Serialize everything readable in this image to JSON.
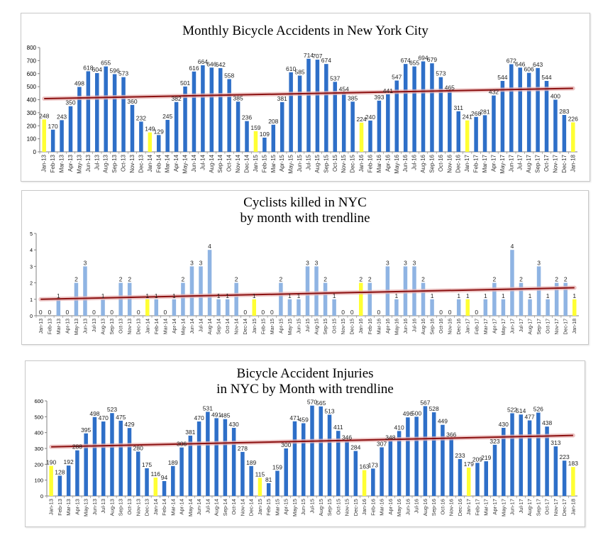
{
  "chart_data": [
    {
      "type": "bar",
      "title": "Monthly Bicycle Accidents in New York City",
      "title_lines": [
        "Monthly Bicycle Accidents in New York City"
      ],
      "categories": [
        "Jan-13",
        "Feb-13",
        "Mar-13",
        "Apr-13",
        "May-13",
        "Jun-13",
        "Jul-13",
        "Aug-13",
        "Sep-13",
        "Oct-13",
        "Nov-13",
        "Dec-13",
        "Jan-14",
        "Feb-14",
        "Mar-14",
        "Apr-14",
        "May-14",
        "Jun-14",
        "Jul-14",
        "Aug-14",
        "Sep-14",
        "Oct-14",
        "Nov-14",
        "Dec-14",
        "Jan-15",
        "Feb-15",
        "Mar-15",
        "Apr-15",
        "May-15",
        "Jun-15",
        "Jul-15",
        "Aug-15",
        "Sep-15",
        "Oct-15",
        "Nov-15",
        "Dec-15",
        "Jan-16",
        "Feb-16",
        "Mar-16",
        "Apr-16",
        "May-16",
        "Jun-16",
        "Jul-16",
        "Aug-16",
        "Sep-16",
        "Oct-16",
        "Nov-16",
        "Dec-16",
        "Jan-17",
        "Feb-17",
        "Mar-17",
        "Apr-17",
        "May-17",
        "Jun-17",
        "Jul-17",
        "Aug-17",
        "Sep-17",
        "Oct-17",
        "Nov-17",
        "Dec-17",
        "Jan-18"
      ],
      "values": [
        248,
        170,
        243,
        350,
        498,
        618,
        604,
        655,
        596,
        573,
        360,
        232,
        149,
        129,
        245,
        382,
        501,
        616,
        664,
        646,
        642,
        558,
        385,
        236,
        159,
        109,
        208,
        381,
        610,
        585,
        714,
        707,
        674,
        537,
        454,
        385,
        224,
        240,
        393,
        441,
        547,
        674,
        655,
        694,
        679,
        573,
        465,
        311,
        241,
        268,
        281,
        432,
        544,
        672,
        646,
        606,
        643,
        544,
        400,
        283,
        226
      ],
      "data_labels": [
        "248",
        "170",
        "243",
        "350",
        "498",
        "618",
        "604",
        "655",
        "596",
        "573",
        "360",
        "232",
        "149",
        "129",
        "245",
        "382",
        "501",
        "616",
        "664",
        "646",
        "642",
        "558",
        "385",
        "236",
        "159",
        "109",
        "208",
        "381",
        "610",
        "585",
        "714",
        "707",
        "674",
        "537",
        "454",
        "385",
        "224",
        "240",
        "393",
        "441",
        "547",
        "674",
        "655",
        "694",
        "679",
        "573",
        "465",
        "311",
        "241",
        "268",
        "281",
        "432",
        "544",
        "672",
        "646",
        "606",
        "643",
        "544",
        "400",
        "283",
        "226"
      ],
      "ylim": [
        0,
        800
      ],
      "yticks": [
        "0",
        "100",
        "200",
        "300",
        "400",
        "500",
        "600",
        "700",
        "800"
      ],
      "trendline": {
        "start": 408,
        "end": 487
      },
      "colors": {
        "bar": "#2e6fc8",
        "bar_highlight": "#ffff33",
        "trend": "#8b1010",
        "trend_glow": "#e8b4b4"
      }
    },
    {
      "type": "bar",
      "title": "Cyclists killed in NYC by month with trendline",
      "title_lines": [
        "Cyclists killed in NYC",
        "by month with trendline"
      ],
      "categories": [
        "Jan-13",
        "Feb-13",
        "Mar-13",
        "Apr-13",
        "May-13",
        "Jun-13",
        "Jul-13",
        "Aug-13",
        "Sep-13",
        "Oct-13",
        "Nov-13",
        "Dec-13",
        "Jan-14",
        "Feb-14",
        "Mar-14",
        "Apr-14",
        "May-14",
        "Jun-14",
        "Jul-14",
        "Aug-14",
        "Sep-14",
        "Oct-14",
        "Nov-14",
        "Dec-14",
        "Jan-15",
        "Feb-15",
        "Mar-15",
        "Apr-15",
        "May-15",
        "Jun-15",
        "Jul-15",
        "Aug-15",
        "Sep-15",
        "Oct-15",
        "Nov-15",
        "Dec-15",
        "Jan-16",
        "Feb-16",
        "Mar-16",
        "Apr-16",
        "May-16",
        "Jun-16",
        "Jul-16",
        "Aug-16",
        "Sep-16",
        "Oct-16",
        "Nov-16",
        "Dec-16",
        "Jan-17",
        "Feb-17",
        "Mar-17",
        "Apr-17",
        "May-17",
        "Jun-17",
        "Jul-17",
        "Aug-17",
        "Sep-17",
        "Oct-17",
        "Nov-17",
        "Dec-17",
        "Jan-18"
      ],
      "values": [
        0,
        0,
        1,
        0,
        2,
        3,
        0,
        1,
        0,
        2,
        2,
        0,
        1,
        1,
        0,
        1,
        2,
        3,
        3,
        4,
        1,
        1,
        2,
        0,
        1,
        0,
        0,
        2,
        1,
        1,
        3,
        3,
        2,
        1,
        0,
        0,
        2,
        2,
        0,
        3,
        1,
        3,
        3,
        2,
        1,
        0,
        0,
        1,
        1,
        0,
        1,
        2,
        1,
        4,
        2,
        1,
        3,
        1,
        2,
        2,
        1
      ],
      "data_labels": [
        "0",
        "0",
        "1",
        "0",
        "2",
        "3",
        "0",
        "1",
        "0",
        "2",
        "2",
        "0",
        "1",
        "1",
        "0",
        "1",
        "2",
        "3",
        "3",
        "4",
        "1",
        "1",
        "2",
        "0",
        "1",
        "0",
        "0",
        "2",
        "1",
        "1",
        "3",
        "3",
        "2",
        "1",
        "0",
        "0",
        "2",
        "2",
        "0",
        "3",
        "1",
        "3",
        "3",
        "2",
        "1",
        "0",
        "0",
        "1",
        "1",
        "0",
        "1",
        "2",
        "1",
        "4",
        "2",
        "1",
        "3",
        "1",
        "2",
        "2",
        "1"
      ],
      "ylim": [
        0,
        5
      ],
      "yticks": [
        "0",
        "1",
        "2",
        "3",
        "4",
        "5"
      ],
      "trendline": {
        "start": 1.0,
        "end": 1.7
      },
      "colors": {
        "bar": "#8fb4e3",
        "bar_highlight": "#ffff33",
        "trend": "#8b1010",
        "trend_glow": "#e8b4b4"
      }
    },
    {
      "type": "bar",
      "title": "Bicycle Accident Injuries in NYC by Month with trendline",
      "title_lines": [
        "Bicycle Accident Injuries",
        "in NYC by Month with trendline"
      ],
      "categories": [
        "Jan-13",
        "Feb-13",
        "Mar-13",
        "Apr-13",
        "May-13",
        "Jun-13",
        "Jul-13",
        "Aug-13",
        "Sep-13",
        "Oct-13",
        "Nov-13",
        "Dec-13",
        "Jan-14",
        "Feb-14",
        "Mar-14",
        "Apr-14",
        "May-14",
        "Jun-14",
        "Jul-14",
        "Aug-14",
        "Sep-14",
        "Oct-14",
        "Nov-14",
        "Dec-14",
        "Jan-15",
        "Feb-15",
        "Mar-15",
        "Apr-15",
        "May-15",
        "Jun-15",
        "Jul-15",
        "Aug-15",
        "Sep-15",
        "Oct-15",
        "Nov-15",
        "Dec-15",
        "Jan-16",
        "Feb-16",
        "Mar-16",
        "Apr-16",
        "May-16",
        "Jun-16",
        "Jul-16",
        "Aug-16",
        "Sep-16",
        "Oct-16",
        "Nov-16",
        "Dec-16",
        "Jan-17",
        "Feb-17",
        "Mar-17",
        "Apr-17",
        "May-17",
        "Jun-17",
        "Jul-17",
        "Aug-17",
        "Sep-17",
        "Oct-17",
        "Nov-17",
        "Dec-17",
        "Jan-18"
      ],
      "values": [
        190,
        128,
        192,
        288,
        395,
        498,
        470,
        523,
        475,
        429,
        280,
        175,
        116,
        94,
        189,
        306,
        381,
        470,
        531,
        491,
        485,
        430,
        278,
        189,
        115,
        81,
        159,
        300,
        471,
        459,
        570,
        565,
        513,
        411,
        346,
        284,
        163,
        173,
        307,
        348,
        410,
        496,
        500,
        567,
        528,
        449,
        366,
        233,
        179,
        209,
        219,
        323,
        430,
        522,
        514,
        477,
        526,
        438,
        313,
        223,
        183
      ],
      "data_labels": [
        "190",
        "128",
        "192",
        "288",
        "395",
        "498",
        "470",
        "523",
        "475",
        "429",
        "280",
        "175",
        "116",
        "94",
        "189",
        "306",
        "381",
        "470",
        "531",
        "491",
        "485",
        "430",
        "278",
        "189",
        "115",
        "81",
        "159",
        "300",
        "471",
        "459",
        "570",
        "565",
        "513",
        "411",
        "346",
        "284",
        "163",
        "173",
        "307",
        "348",
        "410",
        "496",
        "500",
        "567",
        "528",
        "449",
        "366",
        "233",
        "179",
        "209",
        "219",
        "323",
        "430",
        "522",
        "514",
        "477",
        "526",
        "438",
        "313",
        "223",
        "183"
      ],
      "ylim": [
        0,
        600
      ],
      "yticks": [
        "0",
        "100",
        "200",
        "300",
        "400",
        "500",
        "600"
      ],
      "trendline": {
        "start": 310,
        "end": 382
      },
      "colors": {
        "bar": "#2e6fc8",
        "bar_highlight": "#ffff33",
        "trend": "#8b1010",
        "trend_glow": "#e8b4b4"
      }
    }
  ]
}
